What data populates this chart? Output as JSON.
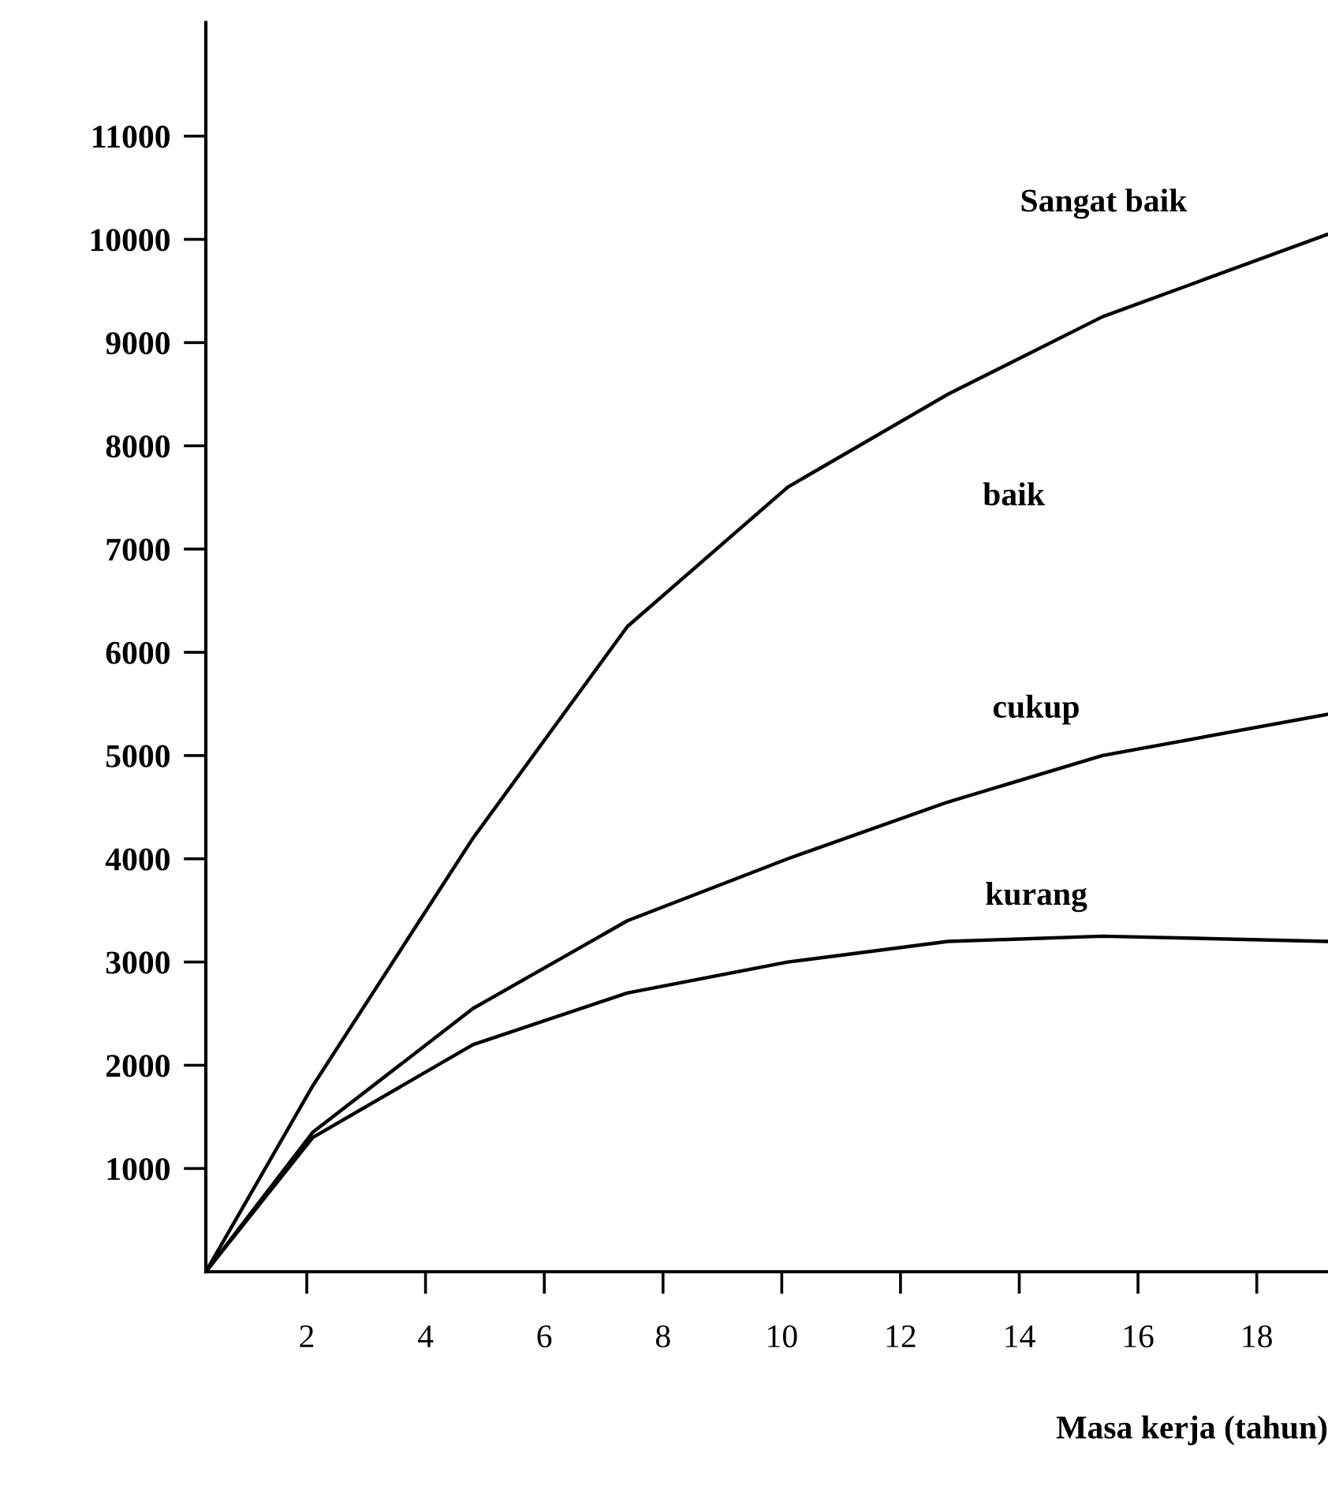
{
  "chart_data": {
    "type": "line",
    "xlabel": "Masa kerja (tahun)",
    "xlim": [
      0.3,
      19.2
    ],
    "xticks": [
      2,
      4,
      6,
      8,
      10,
      12,
      14,
      16,
      18
    ],
    "ylim": [
      0,
      12100
    ],
    "yticks": [
      1000,
      2000,
      3000,
      4000,
      5000,
      6000,
      7000,
      8000,
      9000,
      10000,
      11000
    ],
    "grid": false,
    "legend": false,
    "marker": "none",
    "line_style": "solid",
    "series": [
      {
        "color": "#000000",
        "x": [
          0.3,
          2.1,
          4.8,
          7.4,
          10.1,
          12.8,
          15.4,
          19.2
        ],
        "values": [
          0,
          1800,
          4200,
          6250,
          7600,
          8500,
          9250,
          10050
        ]
      },
      {
        "color": "#000000",
        "x": [
          0.3,
          2.1,
          4.8,
          7.4,
          10.1,
          12.8,
          15.4,
          19.2
        ],
        "values": [
          0,
          1350,
          2550,
          3400,
          4000,
          4550,
          5000,
          5400
        ]
      },
      {
        "color": "#000000",
        "x": [
          0.3,
          2.1,
          4.8,
          7.4,
          10.1,
          12.8,
          15.4,
          19.2
        ],
        "values": [
          0,
          1300,
          2200,
          2700,
          3000,
          3200,
          3250,
          3200
        ]
      }
    ],
    "annotations": [
      "Sangat baik",
      "baik",
      "cukup",
      "kurang"
    ]
  }
}
